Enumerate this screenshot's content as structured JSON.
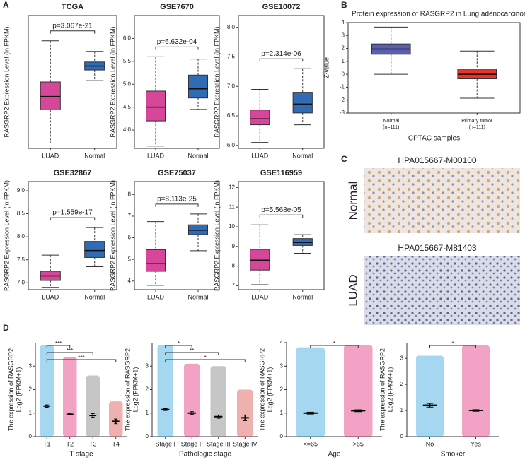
{
  "panel_labels": [
    "A",
    "B",
    "C",
    "D"
  ],
  "ihc": {
    "normal": {
      "title": "HPA015667-M00100",
      "label": "Normal"
    },
    "luad": {
      "title": "HPA015667-M81403",
      "label": "LUAD"
    }
  },
  "chart_data": [
    {
      "type": "box",
      "title": "TCGA",
      "frame": "box",
      "ylabel": "RASGRP2 Expression Level (ln FPKM)",
      "categories": [
        "LUAD",
        "Normal"
      ],
      "ylim": [
        3.5,
        8.5
      ],
      "boxes": [
        {
          "min": 3.7,
          "q1": 4.95,
          "median": 5.45,
          "q3": 6.0,
          "max": 7.55,
          "color": "#d6479a"
        },
        {
          "min": 6.05,
          "q1": 6.45,
          "median": 6.6,
          "q3": 6.75,
          "max": 7.15,
          "color": "#2f6cb5"
        }
      ],
      "annotation": "p=3.067e-21"
    },
    {
      "type": "box",
      "title": "GSE7670",
      "frame": "box",
      "ylabel": "RASGRP2 Expression Level (ln FPKM)",
      "categories": [
        "LUAD",
        "Normal"
      ],
      "ylim": [
        3.6,
        6.5
      ],
      "yticks": [
        {
          "value": 4,
          "label": "4.0"
        },
        4.5,
        {
          "value": 5,
          "label": "5.0"
        },
        5.5,
        {
          "value": 6,
          "label": "6.0"
        }
      ],
      "boxes": [
        {
          "min": 3.65,
          "q1": 4.2,
          "median": 4.5,
          "q3": 4.85,
          "max": 5.6,
          "color": "#d6479a"
        },
        {
          "min": 4.45,
          "q1": 4.7,
          "median": 4.9,
          "q3": 5.2,
          "max": 5.55,
          "color": "#2f6cb5"
        }
      ],
      "annotation": "p=6.632e-04"
    },
    {
      "type": "box",
      "title": "GSE10072",
      "frame": "box",
      "ylabel": "RASGRP2 Expression Level (ln FPKM)",
      "categories": [
        "LUAD",
        "Normal"
      ],
      "ylim": [
        5.95,
        8.2
      ],
      "yticks": [
        {
          "value": 6,
          "label": "6.0"
        },
        6.5,
        {
          "value": 7,
          "label": "7.0"
        },
        7.5,
        {
          "value": 8,
          "label": "8.0"
        }
      ],
      "boxes": [
        {
          "min": 6.05,
          "q1": 6.35,
          "median": 6.45,
          "q3": 6.6,
          "max": 6.95,
          "color": "#d6479a"
        },
        {
          "min": 6.35,
          "q1": 6.55,
          "median": 6.7,
          "q3": 6.9,
          "max": 7.3,
          "color": "#2f6cb5"
        }
      ],
      "annotation": "p=2.314e-06"
    },
    {
      "type": "box",
      "title": "GSE32867",
      "frame": "box",
      "ylabel": "RASGRP2 Expression Level (ln FPKM)",
      "categories": [
        "LUAD",
        "Normal"
      ],
      "ylim": [
        6.85,
        9.2
      ],
      "yticks": [
        {
          "value": 7,
          "label": "7.0"
        },
        7.5,
        {
          "value": 8,
          "label": "8.0"
        },
        8.5,
        {
          "value": 9,
          "label": "9.0"
        }
      ],
      "boxes": [
        {
          "min": 6.9,
          "q1": 7.05,
          "median": 7.15,
          "q3": 7.25,
          "max": 7.6,
          "color": "#d6479a"
        },
        {
          "min": 7.35,
          "q1": 7.55,
          "median": 7.7,
          "q3": 7.9,
          "max": 8.2,
          "color": "#2f6cb5"
        }
      ],
      "annotation": "p=1.559e-17"
    },
    {
      "type": "box",
      "title": "GSE75037",
      "frame": "box",
      "ylabel": "RASGRP2 Expression Level (ln FPKM)",
      "categories": [
        "LUAD",
        "Normal"
      ],
      "ylim": [
        3.6,
        8.6
      ],
      "yticks": [
        4,
        5,
        6,
        7,
        8
      ],
      "boxes": [
        {
          "min": 3.8,
          "q1": 4.45,
          "median": 4.8,
          "q3": 5.45,
          "max": 6.75,
          "color": "#d6479a"
        },
        {
          "min": 5.4,
          "q1": 6.15,
          "median": 6.35,
          "q3": 6.6,
          "max": 7.1,
          "color": "#2f6cb5"
        }
      ],
      "annotation": "p=8.113e-25"
    },
    {
      "type": "box",
      "title": "GSE116959",
      "frame": "box",
      "ylabel": "RASGRP2 Expression Level (ln FPKM)",
      "categories": [
        "LUAD",
        "Normal"
      ],
      "ylim": [
        6.8,
        12.3
      ],
      "yticks": [
        7,
        8,
        9,
        10,
        11,
        12
      ],
      "boxes": [
        {
          "min": 7.05,
          "q1": 7.8,
          "median": 8.3,
          "q3": 8.85,
          "max": 10.1,
          "color": "#d6479a"
        },
        {
          "min": 8.65,
          "q1": 9.05,
          "median": 9.2,
          "q3": 9.4,
          "max": 9.6,
          "color": "#2f6cb5"
        }
      ],
      "annotation": "p=5.568e-05"
    },
    {
      "type": "box",
      "title": "Protein expression of RASGRP2 in Lung adenocarcinoma",
      "frame": "box",
      "ylabel": "Z-value",
      "xlabel": "CPTAC samples",
      "categories": [
        "Normal",
        "Primary tumor"
      ],
      "category_notes": [
        "(n=111)",
        "(n=111)"
      ],
      "ylim": [
        -3,
        4
      ],
      "yticks": [
        -3,
        -2,
        -1,
        0,
        1,
        2,
        3,
        4
      ],
      "boxes": [
        {
          "min": 0,
          "q1": 1.55,
          "median": 1.95,
          "q3": 2.35,
          "max": 3.65,
          "color": "#5a5fb0"
        },
        {
          "min": -1.85,
          "q1": -0.35,
          "median": 0,
          "q3": 0.4,
          "max": 1.8,
          "color": "#e8322a"
        }
      ]
    },
    {
      "type": "dot",
      "frame": "open",
      "ylabel": "The expression of RASGRP2",
      "ylabel2": "Log2 (FPKM+1)",
      "xlabel": "T stage",
      "categories": [
        "T1",
        "T2",
        "T3",
        "T4"
      ],
      "colors": [
        "#3aa6e0",
        "#e0307f",
        "#808080",
        "#d9534f"
      ],
      "ylim": [
        0,
        4
      ],
      "yticks": [
        0,
        1,
        2,
        3
      ],
      "values": [
        1.3,
        0.95,
        0.9,
        0.65
      ],
      "errors": [
        0.05,
        0.03,
        0.08,
        0.1
      ],
      "min": [
        0,
        0,
        0,
        0
      ],
      "max": [
        3.9,
        3.4,
        2.6,
        1.5
      ],
      "comparisons": [
        {
          "from": "T1",
          "to": "T2",
          "label": "***"
        },
        {
          "from": "T1",
          "to": "T3",
          "label": "***"
        },
        {
          "from": "T1",
          "to": "T4",
          "label": "***"
        }
      ]
    },
    {
      "type": "dot",
      "frame": "open",
      "ylabel": "The expression of RASGRP2",
      "ylabel2": "Log2 (FPKM+1)",
      "xlabel": "Pathologic stage",
      "categories": [
        "Stage I",
        "Stage II",
        "Stage III",
        "Stage IV"
      ],
      "colors": [
        "#3aa6e0",
        "#e0307f",
        "#808080",
        "#d9534f"
      ],
      "ylim": [
        0,
        4
      ],
      "yticks": [
        0,
        1,
        2,
        3
      ],
      "values": [
        1.15,
        1.0,
        0.85,
        0.8
      ],
      "errors": [
        0.04,
        0.06,
        0.07,
        0.12
      ],
      "min": [
        0,
        0,
        0,
        0
      ],
      "max": [
        3.9,
        3.1,
        3.0,
        2.0
      ],
      "comparisons": [
        {
          "from": "Stage I",
          "to": "Stage II",
          "label": "*"
        },
        {
          "from": "Stage I",
          "to": "Stage III",
          "label": "**"
        },
        {
          "from": "Stage I",
          "to": "Stage IV",
          "label": "*"
        }
      ]
    },
    {
      "type": "dot",
      "frame": "open",
      "ylabel": "The expression of RASGRP2",
      "ylabel2": "Log2 (FPKM+1)",
      "xlabel": "Age",
      "categories": [
        "<=65",
        ">65"
      ],
      "colors": [
        "#3aa6e0",
        "#e0307f"
      ],
      "ylim": [
        0,
        4
      ],
      "yticks": [
        0,
        1,
        2,
        3,
        4
      ],
      "values": [
        1.0,
        1.1
      ],
      "errors": [
        0.04,
        0.04
      ],
      "min": [
        0,
        0
      ],
      "max": [
        3.8,
        3.9
      ],
      "comparisons": [
        {
          "from": "<=65",
          "to": ">65",
          "label": "*"
        }
      ]
    },
    {
      "type": "dot",
      "frame": "open",
      "ylabel": "The expression of RASGRP2",
      "ylabel2": "Log2 (FPKM+1)",
      "xlabel": "Smoker",
      "categories": [
        "No",
        "Yes"
      ],
      "colors": [
        "#3aa6e0",
        "#e0307f"
      ],
      "ylim": [
        0,
        3.6
      ],
      "yticks": [
        0,
        1,
        2,
        3
      ],
      "values": [
        1.2,
        1.0
      ],
      "errors": [
        0.07,
        0.03
      ],
      "min": [
        0,
        0
      ],
      "max": [
        3.1,
        3.5
      ],
      "comparisons": [
        {
          "from": "No",
          "to": "Yes",
          "label": "*"
        }
      ]
    }
  ]
}
